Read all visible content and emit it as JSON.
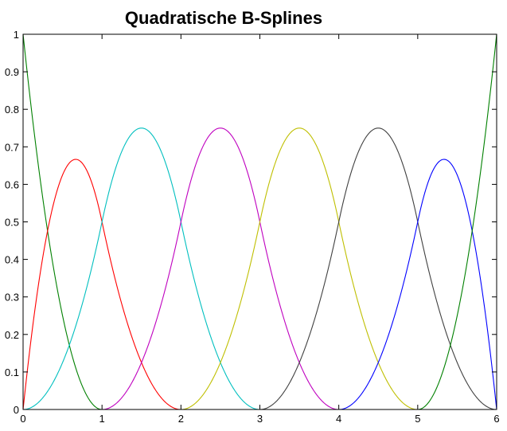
{
  "chart_data": {
    "type": "line",
    "title": "Quadratische B-Splines",
    "xlabel": "",
    "ylabel": "",
    "xlim": [
      0,
      6
    ],
    "ylim": [
      0,
      1
    ],
    "grid": false,
    "knots": [
      0,
      0,
      0,
      1,
      2,
      3,
      4,
      5,
      6,
      6,
      6
    ],
    "degree": 2,
    "x_ticks": [
      0,
      1,
      2,
      3,
      4,
      5,
      6
    ],
    "y_ticks": [
      0,
      0.1,
      0.2,
      0.3,
      0.4,
      0.5,
      0.6,
      0.7,
      0.8,
      0.9,
      1
    ],
    "series": [
      {
        "color": "#008000",
        "peak": [
          0.0,
          1.0
        ]
      },
      {
        "color": "#ff0000",
        "peak": [
          0.667,
          0.667
        ]
      },
      {
        "color": "#00bfbf",
        "peak": [
          1.5,
          0.75
        ]
      },
      {
        "color": "#bf00bf",
        "peak": [
          2.5,
          0.75
        ]
      },
      {
        "color": "#bfbf00",
        "peak": [
          3.5,
          0.75
        ]
      },
      {
        "color": "#404040",
        "peak": [
          4.5,
          0.75
        ]
      },
      {
        "color": "#0000ff",
        "peak": [
          5.333,
          0.667
        ]
      },
      {
        "color": "#008000",
        "peak": [
          6.0,
          1.0
        ]
      }
    ]
  }
}
